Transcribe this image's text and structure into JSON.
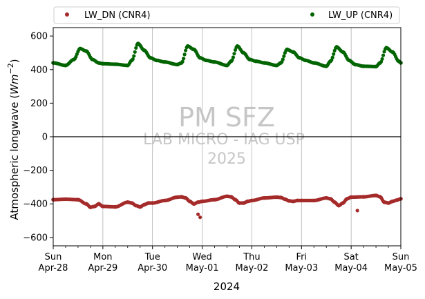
{
  "chart_data": {
    "type": "scatter",
    "ylabel_main": "Atmospheric longwave (",
    "ylabel_unit": "Wm",
    "ylabel_exp": "−2",
    "ylabel_close": ")",
    "xlabel": "2024",
    "ylim": [
      -650,
      650
    ],
    "yticks": [
      600,
      400,
      200,
      0,
      -200,
      -400,
      -600
    ],
    "ytick_labels": [
      "600",
      "400",
      "200",
      "0",
      "−200",
      "−400",
      "−600"
    ],
    "xlim": [
      "2024-04-28 00:00",
      "2024-05-05 00:00"
    ],
    "xticks": [
      {
        "day": "Sun",
        "date": "Apr-28"
      },
      {
        "day": "Mon",
        "date": "Apr-29"
      },
      {
        "day": "Tue",
        "date": "Apr-30"
      },
      {
        "day": "Wed",
        "date": "May-01"
      },
      {
        "day": "Thu",
        "date": "May-02"
      },
      {
        "day": "Fri",
        "date": "May-03"
      },
      {
        "day": "Sat",
        "date": "May-04"
      },
      {
        "day": "Sun",
        "date": "May-05"
      }
    ],
    "grid": "vertical",
    "zero_line": true,
    "legend_position": "top, above plot",
    "watermark": {
      "title": "PM SFZ",
      "line1": "LAB MICRO - IAG USP",
      "line2": "2025"
    },
    "series": [
      {
        "name": "LW_DN (CNR4)",
        "color": "#a52a2a",
        "x_hours": [
          0,
          6,
          12,
          16,
          18,
          20,
          22,
          24,
          30,
          36,
          38,
          40,
          42,
          44,
          46,
          48,
          54,
          60,
          62,
          64,
          66,
          68,
          70,
          72,
          78,
          84,
          86,
          88,
          90,
          92,
          94,
          96,
          102,
          108,
          110,
          112,
          114,
          116,
          118,
          120,
          126,
          132,
          134,
          136,
          138,
          140,
          142,
          144,
          150,
          156,
          158,
          160,
          162,
          164,
          166,
          168
        ],
        "values": [
          -375,
          -372,
          -375,
          -400,
          -420,
          -415,
          -400,
          -415,
          -418,
          -390,
          -395,
          -410,
          -418,
          -405,
          -395,
          -395,
          -380,
          -360,
          -358,
          -365,
          -385,
          -400,
          -390,
          -385,
          -375,
          -355,
          -358,
          -375,
          -395,
          -395,
          -385,
          -380,
          -365,
          -360,
          -362,
          -372,
          -382,
          -385,
          -380,
          -380,
          -380,
          -365,
          -370,
          -390,
          -410,
          -395,
          -370,
          -360,
          -358,
          -350,
          -358,
          -390,
          -395,
          -385,
          -378,
          -370
        ],
        "outliers": [
          {
            "x_hours": 70,
            "value": -462
          },
          {
            "x_hours": 71,
            "value": -480
          },
          {
            "x_hours": 147,
            "value": -440
          }
        ]
      },
      {
        "name": "LW_UP (CNR4)",
        "color": "#006400",
        "x_hours": [
          0,
          6,
          10,
          13,
          16,
          19,
          22,
          24,
          30,
          36,
          38,
          41,
          44,
          47,
          50,
          54,
          60,
          62,
          65,
          68,
          71,
          74,
          78,
          84,
          86,
          89,
          92,
          95,
          98,
          102,
          108,
          110,
          113,
          116,
          119,
          122,
          126,
          132,
          134,
          137,
          140,
          143,
          146,
          150,
          156,
          158,
          161,
          164,
          167,
          168
        ],
        "values": [
          440,
          425,
          460,
          525,
          510,
          460,
          440,
          435,
          432,
          425,
          455,
          555,
          515,
          470,
          455,
          445,
          430,
          440,
          540,
          520,
          470,
          455,
          445,
          425,
          450,
          540,
          500,
          460,
          450,
          440,
          425,
          440,
          520,
          505,
          470,
          455,
          440,
          420,
          450,
          535,
          505,
          455,
          430,
          420,
          418,
          440,
          530,
          505,
          450,
          440
        ]
      }
    ]
  }
}
